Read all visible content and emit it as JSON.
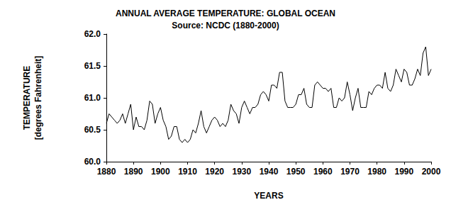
{
  "chart_data": {
    "type": "line",
    "title": "ANNUAL AVERAGE TEMPERATURE: GLOBAL OCEAN",
    "subtitle": "Source: NCDC (1880-2000)",
    "x_label": "YEARS",
    "y_label": "TEMPERATURE\n[degrees Fahrenheit]",
    "color": "#000000",
    "grid": false,
    "x": [
      1880,
      1881,
      1882,
      1883,
      1884,
      1885,
      1886,
      1887,
      1888,
      1889,
      1890,
      1891,
      1892,
      1893,
      1894,
      1895,
      1896,
      1897,
      1898,
      1899,
      1900,
      1901,
      1902,
      1903,
      1904,
      1905,
      1906,
      1907,
      1908,
      1909,
      1910,
      1911,
      1912,
      1913,
      1914,
      1915,
      1916,
      1917,
      1918,
      1919,
      1920,
      1921,
      1922,
      1923,
      1924,
      1925,
      1926,
      1927,
      1928,
      1929,
      1930,
      1931,
      1932,
      1933,
      1934,
      1935,
      1936,
      1937,
      1938,
      1939,
      1940,
      1941,
      1942,
      1943,
      1944,
      1945,
      1946,
      1947,
      1948,
      1949,
      1950,
      1951,
      1952,
      1953,
      1954,
      1955,
      1956,
      1957,
      1958,
      1959,
      1960,
      1961,
      1962,
      1963,
      1964,
      1965,
      1966,
      1967,
      1968,
      1969,
      1970,
      1971,
      1972,
      1973,
      1974,
      1975,
      1976,
      1977,
      1978,
      1979,
      1980,
      1981,
      1982,
      1983,
      1984,
      1985,
      1986,
      1987,
      1988,
      1989,
      1990,
      1991,
      1992,
      1993,
      1994,
      1995,
      1996,
      1997,
      1998,
      1999,
      2000
    ],
    "values": [
      60.6,
      60.75,
      60.7,
      60.65,
      60.6,
      60.65,
      60.75,
      60.6,
      60.75,
      60.9,
      60.5,
      60.7,
      60.55,
      60.55,
      60.5,
      60.65,
      60.95,
      60.9,
      60.6,
      60.75,
      60.85,
      60.65,
      60.55,
      60.35,
      60.4,
      60.55,
      60.55,
      60.35,
      60.3,
      60.35,
      60.3,
      60.35,
      60.5,
      60.45,
      60.6,
      60.8,
      60.55,
      60.45,
      60.55,
      60.65,
      60.7,
      60.65,
      60.55,
      60.6,
      60.55,
      60.65,
      60.9,
      60.8,
      60.75,
      60.6,
      60.85,
      60.95,
      60.85,
      60.75,
      60.85,
      60.85,
      60.9,
      61.05,
      61.1,
      61.05,
      60.95,
      61.2,
      61.2,
      61.15,
      61.4,
      61.4,
      60.95,
      60.85,
      60.85,
      60.85,
      60.9,
      61.05,
      61.05,
      61.15,
      60.9,
      60.85,
      60.85,
      61.2,
      61.25,
      61.2,
      61.15,
      61.15,
      61.1,
      61.15,
      60.85,
      60.85,
      61.0,
      60.95,
      61.0,
      61.25,
      61.05,
      60.8,
      61.0,
      61.15,
      60.85,
      60.85,
      60.85,
      61.1,
      61.05,
      61.15,
      61.2,
      61.2,
      61.15,
      61.4,
      61.15,
      61.1,
      61.2,
      61.45,
      61.35,
      61.25,
      61.45,
      61.4,
      61.2,
      61.2,
      61.3,
      61.45,
      61.35,
      61.7,
      61.8,
      61.35,
      61.45
    ],
    "xlim": [
      1880,
      2000
    ],
    "xticks": [
      1880,
      1890,
      1900,
      1910,
      1920,
      1930,
      1940,
      1950,
      1960,
      1970,
      1980,
      1990,
      2000
    ],
    "ylim": [
      60,
      62
    ],
    "yticks": [
      {
        "value": 60,
        "label": "60.0"
      },
      60.5,
      {
        "value": 61,
        "label": "61.0"
      },
      61.5,
      {
        "value": 62,
        "label": "62.0"
      }
    ]
  }
}
